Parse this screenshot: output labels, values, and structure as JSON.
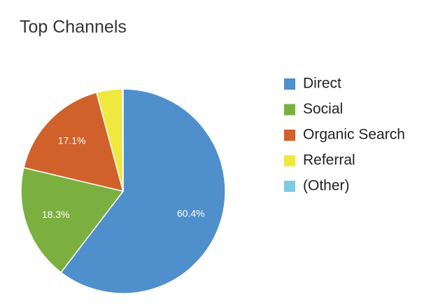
{
  "chart_data": {
    "type": "pie",
    "title": "Top Channels",
    "categories": [
      "Direct",
      "Social",
      "Organic Search",
      "Referral",
      "(Other)"
    ],
    "values": [
      60.4,
      18.3,
      17.1,
      4.1,
      0.1
    ],
    "value_labels": [
      "60.4%",
      "18.3%",
      "17.1%",
      null,
      null
    ],
    "colors": [
      "#4f8fcb",
      "#7bb040",
      "#d0612b",
      "#efe83f",
      "#7ecbe0"
    ],
    "legend": "right"
  }
}
